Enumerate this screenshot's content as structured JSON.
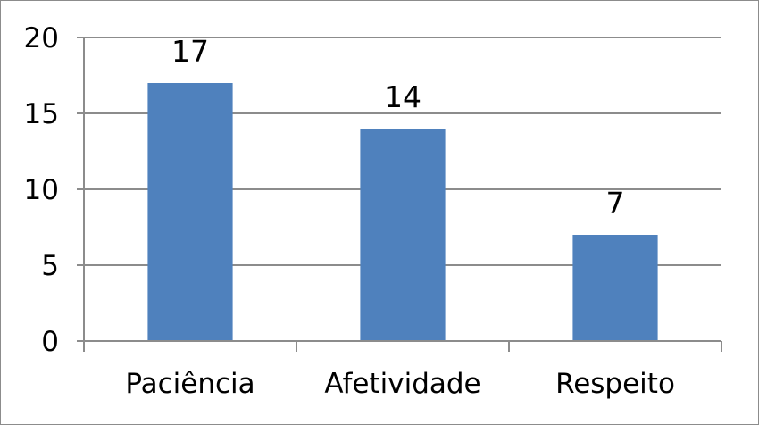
{
  "chart_data": {
    "type": "bar",
    "title": "",
    "xlabel": "",
    "ylabel": "",
    "categories": [
      "Paciência",
      "Afetividade",
      "Respeito"
    ],
    "values": [
      17,
      14,
      7
    ],
    "data_labels": [
      "17",
      "14",
      "7"
    ],
    "ylim": [
      0,
      20
    ],
    "yticks": [
      0,
      5,
      10,
      15,
      20
    ],
    "ytick_labels": [
      "0",
      "5",
      "10",
      "15",
      "20"
    ],
    "grid": true,
    "legend": "none",
    "bar_color": "#4f81bd",
    "grid_color": "#8c8c8c"
  }
}
